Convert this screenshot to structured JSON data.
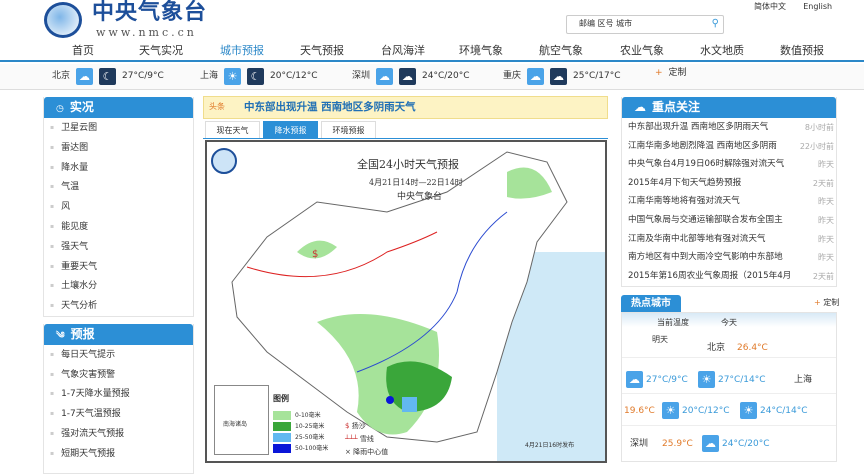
{
  "header": {
    "logo_text": "中央气象台",
    "logo_url": "www.nmc.cn",
    "lang": [
      "简体中文",
      "English"
    ],
    "search_placeholder": "邮编  区号  城市"
  },
  "nav": [
    "首页",
    "天气实况",
    "城市预报",
    "天气预报",
    "台风海洋",
    "环境气象",
    "航空气象",
    "农业气象",
    "水文地质",
    "数值预报"
  ],
  "nav_active": "城市预报",
  "city_bar": [
    {
      "city": "北京",
      "temp": "27°C/9°C"
    },
    {
      "city": "上海",
      "temp": "20°C/12°C"
    },
    {
      "city": "深圳",
      "temp": "24°C/20°C"
    },
    {
      "city": "重庆",
      "temp": "25°C/17°C"
    }
  ],
  "city_bar_custom": "定制",
  "sidebar": {
    "live_title": "实况",
    "live_items": [
      "卫星云图",
      "雷达图",
      "降水量",
      "气温",
      "风",
      "能见度",
      "强天气",
      "重要天气",
      "土壤水分",
      "天气分析"
    ],
    "forecast_title": "预报",
    "forecast_items": [
      "每日天气提示",
      "气象灾害预警",
      "1-7天降水量预报",
      "1-7天气温预报",
      "强对流天气预报",
      "短期天气预报"
    ]
  },
  "headline": {
    "badge": "头条",
    "text": "中东部出现升温 西南地区多阴雨天气"
  },
  "tabs": [
    "现在天气",
    "降水预报",
    "环境预报"
  ],
  "active_tab": "降水预报",
  "map": {
    "title": "全国24小时天气预报",
    "period": "4月21日14时—22日14时",
    "agency": "中央气象台",
    "legend_title": "图例",
    "legend": [
      {
        "label": "0-10毫米",
        "color": "#a6e39a"
      },
      {
        "label": "10-25毫米",
        "color": "#3aa63a"
      },
      {
        "label": "25-50毫米",
        "color": "#62b8f0"
      },
      {
        "label": "50-100毫米",
        "color": "#0a16d8"
      }
    ],
    "symbols": [
      "扬沙",
      "雪线",
      "降雨中心值"
    ],
    "inset": "南海诸岛",
    "issued": "4月21日16时发布"
  },
  "focus": {
    "title": "重点关注",
    "items": [
      {
        "text": "中东部出现升温 西南地区多阴雨天气",
        "time": "8小时前"
      },
      {
        "text": "江南华南多地剧烈降温 西南地区多阴雨",
        "time": "22小时前"
      },
      {
        "text": "中央气象台4月19日06时解除强对流天气",
        "time": "昨天"
      },
      {
        "text": "2015年4月下旬天气趋势预报",
        "time": "2天前"
      },
      {
        "text": "江南华南等地将有强对流天气",
        "time": "昨天"
      },
      {
        "text": "中国气象局与交通运输部联合发布全国主",
        "time": "昨天"
      },
      {
        "text": "江南及华南中北部等地有强对流天气",
        "time": "昨天"
      },
      {
        "text": "南方地区有中到大雨冷空气影响中东部地",
        "time": "昨天"
      },
      {
        "text": "2015年第16周农业气象周报（2015年4月",
        "time": "2天前"
      }
    ]
  },
  "hot": {
    "title": "热点城市",
    "custom": "定制",
    "col_current": "当前温度",
    "col_today": "今天",
    "col_tomorrow": "明天",
    "beijing": {
      "city": "北京",
      "current": "26.4°C",
      "today": "27°C/9°C",
      "tomorrow": "27°C/14°C"
    },
    "shanghai": {
      "city": "上海",
      "current": "19.6°C",
      "today": "20°C/12°C",
      "tomorrow": "24°C/14°C"
    },
    "shenzhen": {
      "city": "深圳",
      "current": "25.9°C",
      "today": "24°C/20°C"
    }
  },
  "colors": {
    "accent": "#2c8fd6",
    "temp_high": "#e07a2a",
    "temp_low": "#3a9ad9"
  }
}
